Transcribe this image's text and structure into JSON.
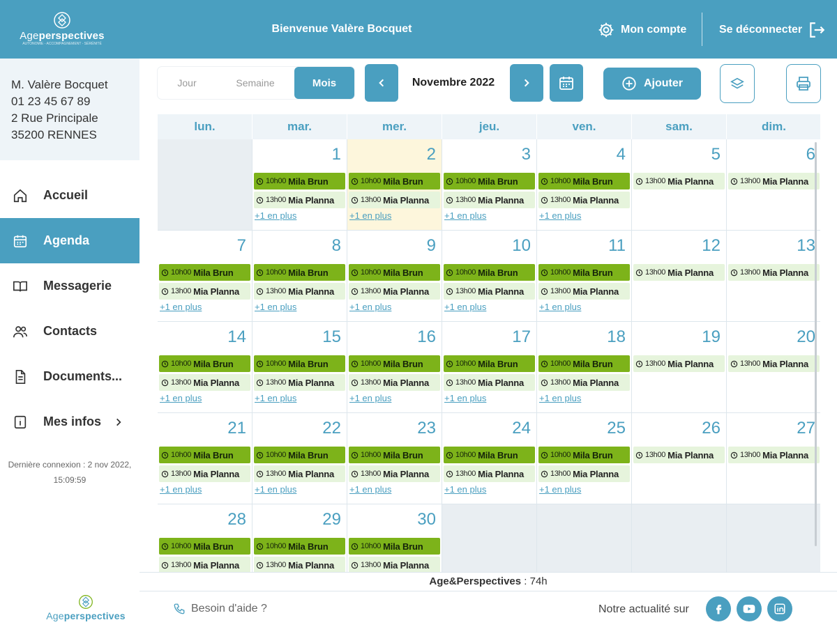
{
  "header": {
    "logo_prefix": "Age",
    "logo_bold": "perspectives",
    "logo_tagline": "AUTONOMIE - ACCOMPAGNEMENT - SÉRÉNITÉ",
    "welcome": "Bienvenue Valère Bocquet",
    "account_label": "Mon compte",
    "logout_label": "Se déconnecter"
  },
  "user": {
    "name": "M. Valère Bocquet",
    "phone": "01 23 45 67 89",
    "street": "2 Rue Principale",
    "city": "35200 RENNES"
  },
  "nav": [
    {
      "label": "Accueil",
      "icon": "home-icon",
      "active": false
    },
    {
      "label": "Agenda",
      "icon": "calendar-icon",
      "active": true
    },
    {
      "label": "Messagerie",
      "icon": "book-icon",
      "active": false
    },
    {
      "label": "Contacts",
      "icon": "people-icon",
      "active": false
    },
    {
      "label": "Documents...",
      "icon": "document-icon",
      "active": false
    },
    {
      "label": "Mes infos",
      "icon": "info-icon",
      "active": false
    }
  ],
  "last_login": {
    "line1": "Dernière connexion : 2 nov 2022,",
    "line2": "15:09:59"
  },
  "toolbar": {
    "view_day": "Jour",
    "view_week": "Semaine",
    "view_month": "Mois",
    "month_label": "Novembre 2022",
    "add_label": "Ajouter"
  },
  "calendar": {
    "weekdays": [
      "lun.",
      "mar.",
      "mer.",
      "jeu.",
      "ven.",
      "sam.",
      "dim."
    ],
    "leading_empty": 1,
    "days_in_month": 30,
    "today": 2,
    "more_label": "+1 en plus",
    "weekday_events": [
      {
        "time": "10h00",
        "name": "Mila Brun",
        "style": "green"
      },
      {
        "time": "13h00",
        "name": "Mia Planna",
        "style": "light"
      }
    ],
    "weekend_events": [
      {
        "time": "13h00",
        "name": "Mia Planna",
        "style": "light"
      }
    ],
    "colors": {
      "accent": "#4a9fc0",
      "event_primary": "#7db31a",
      "event_secondary": "#e6f4dc",
      "today": "#fdf6dc"
    }
  },
  "summary": {
    "org": "Age&Perspectives",
    "hours": " : 74h"
  },
  "footer": {
    "help_label": "Besoin d'aide ?",
    "news_label": "Notre actualité sur",
    "socials": [
      "facebook-icon",
      "youtube-icon",
      "linkedin-icon"
    ]
  }
}
